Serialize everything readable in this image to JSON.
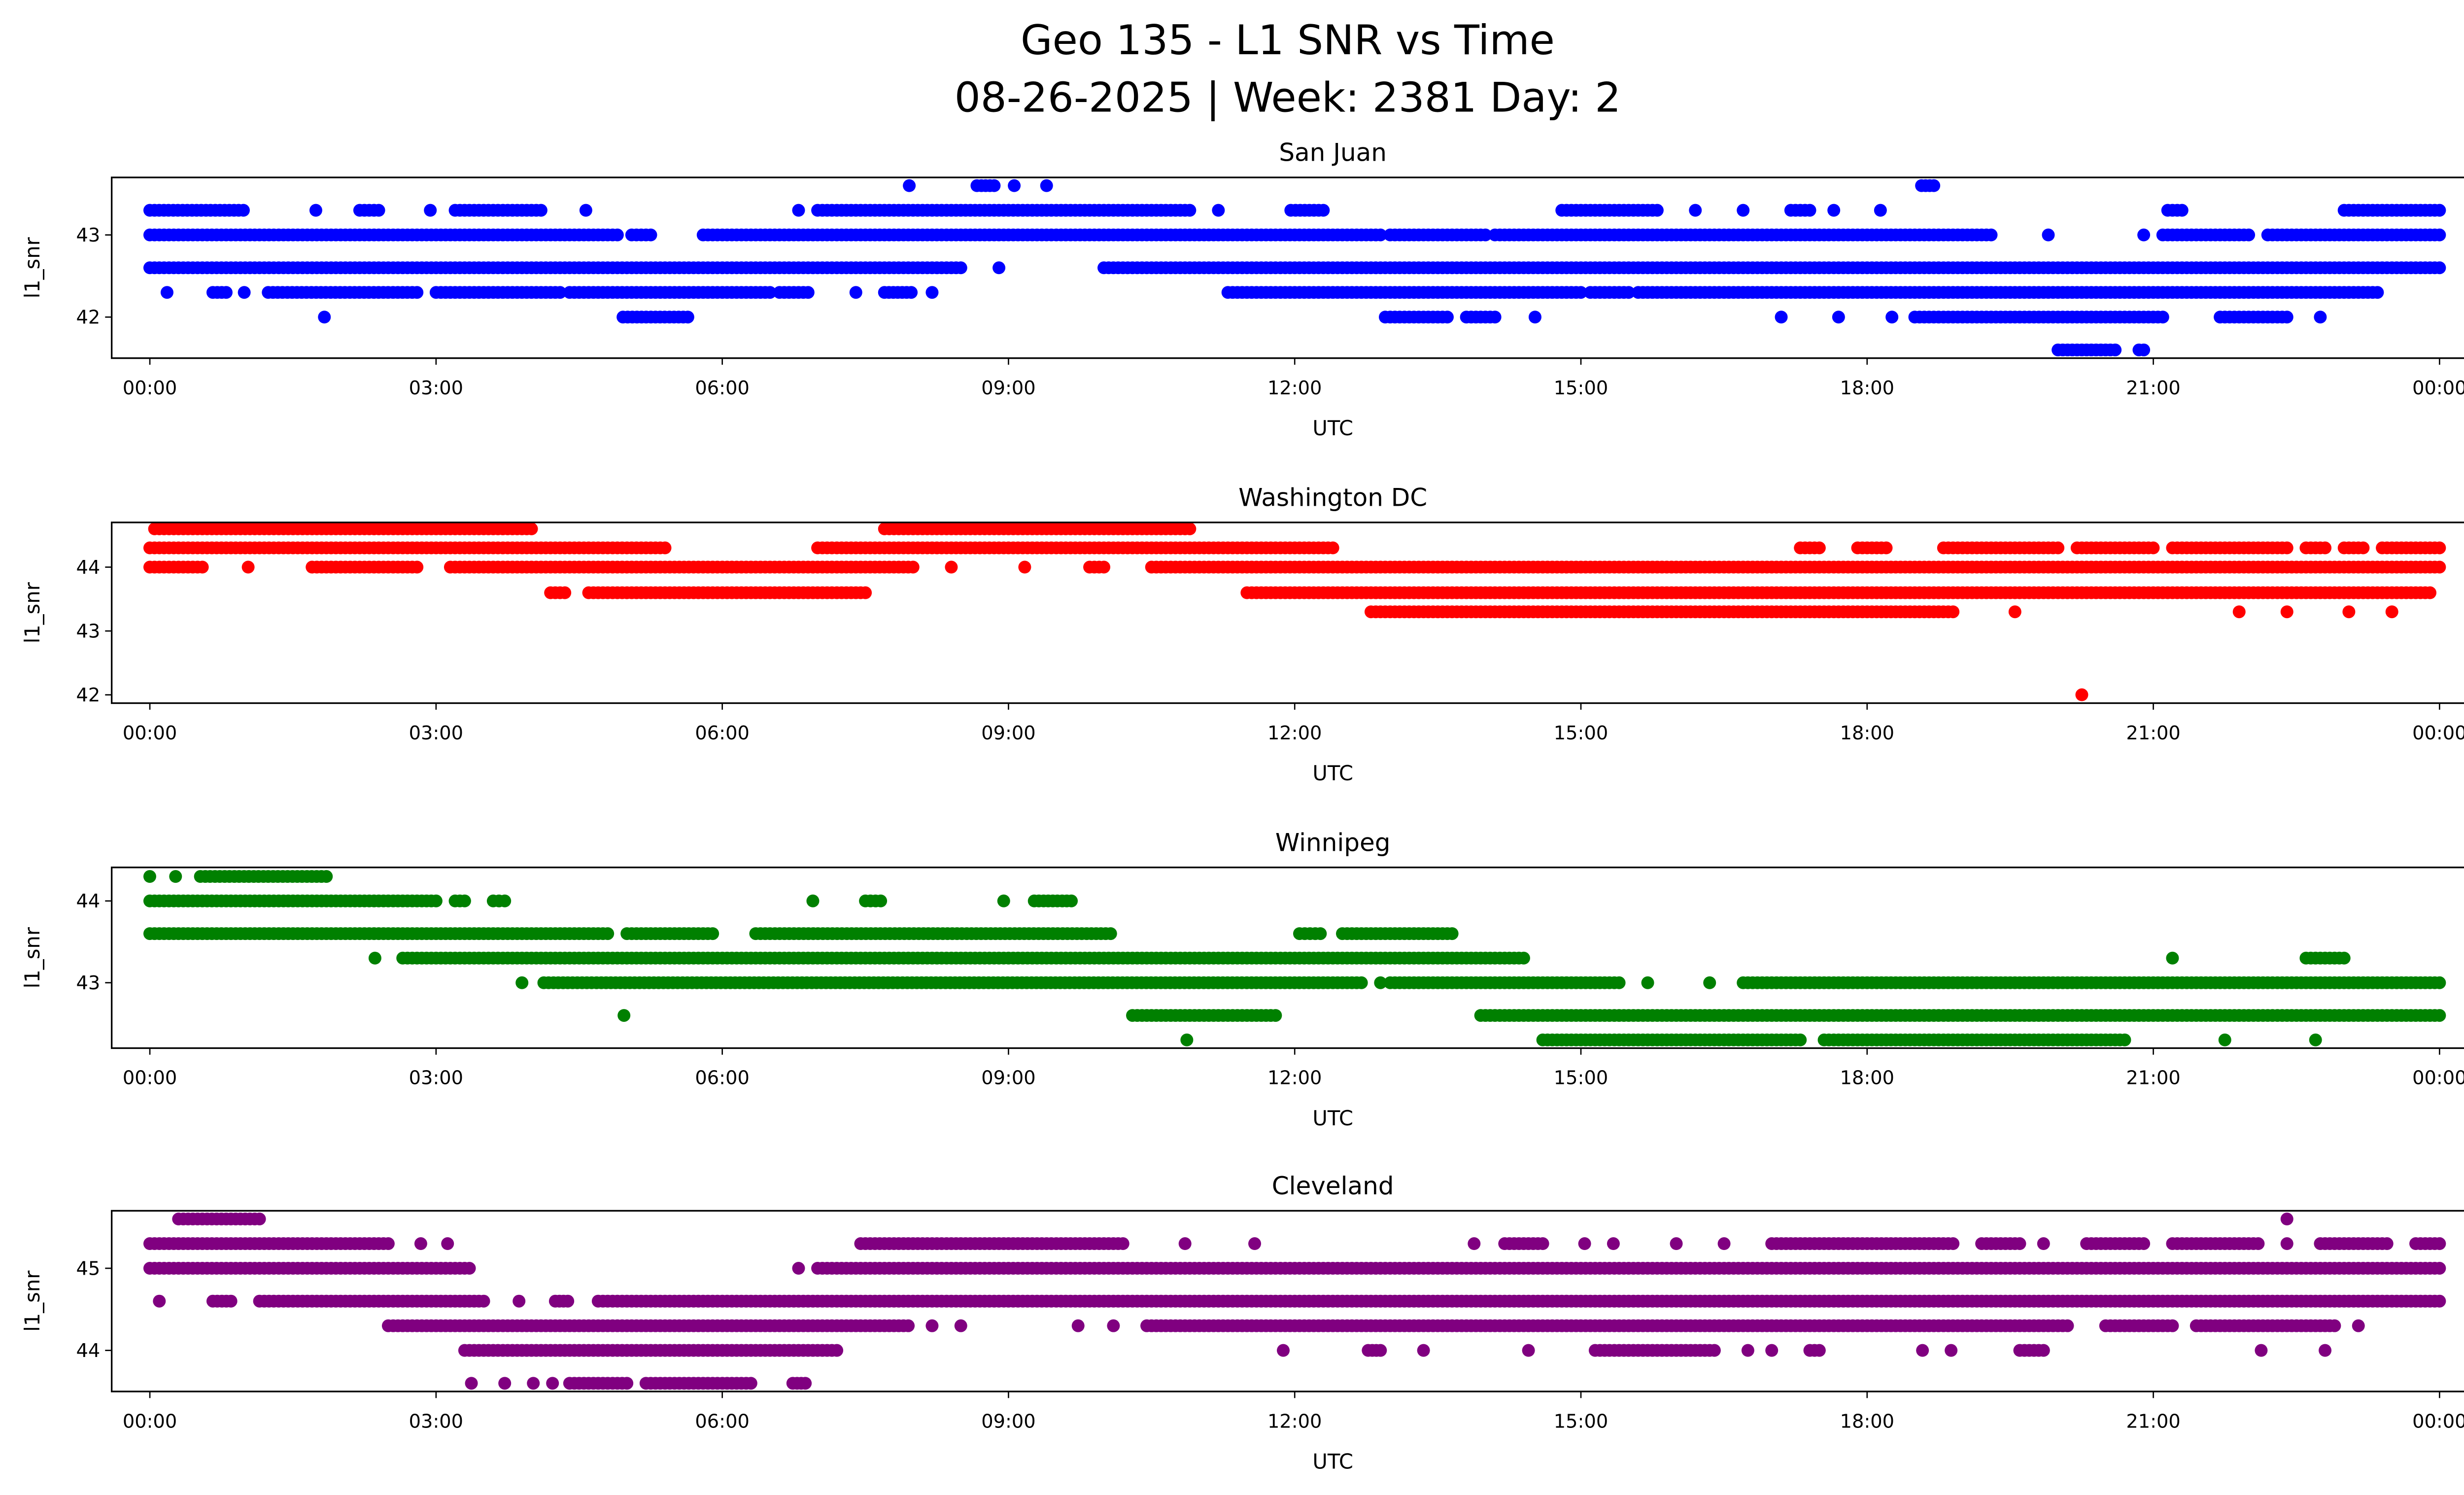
{
  "chart_data": {
    "type": "scatter",
    "title": "Geo 135 - L1 SNR vs Time",
    "subtitle": "08-26-2025 | Week: 2381 Day: 2",
    "xlabel": "UTC",
    "ylabel": "l1_snr",
    "xticks": [
      "00:00",
      "03:00",
      "06:00",
      "09:00",
      "12:00",
      "15:00",
      "18:00",
      "21:00",
      "00:00"
    ],
    "xlim_hours": [
      -0.4,
      25.2
    ],
    "run_format": "[snr_value, start_hour_utc, end_hour_utc]",
    "panels": [
      {
        "title": "San Juan",
        "color": "#0000ff",
        "ylim": [
          41.5,
          43.7
        ],
        "yticks": [
          42,
          43
        ],
        "runs": [
          [
            43.6,
            7.96,
            7.96
          ],
          [
            43.6,
            8.67,
            8.85
          ],
          [
            43.6,
            9.06,
            9.06
          ],
          [
            43.6,
            9.4,
            9.4
          ],
          [
            43.6,
            18.57,
            18.7
          ],
          [
            43.3,
            0,
            0.98
          ],
          [
            43.3,
            1.74,
            1.74
          ],
          [
            43.3,
            2.2,
            2.4
          ],
          [
            43.3,
            2.94,
            2.94
          ],
          [
            43.3,
            3.2,
            4.1
          ],
          [
            43.3,
            4.57,
            4.57
          ],
          [
            43.3,
            6.8,
            6.8
          ],
          [
            43.3,
            7.0,
            10.9
          ],
          [
            43.3,
            11.2,
            11.2
          ],
          [
            43.3,
            11.96,
            12.3
          ],
          [
            43.3,
            14.8,
            15.8
          ],
          [
            43.3,
            16.2,
            16.2
          ],
          [
            43.3,
            16.7,
            16.7
          ],
          [
            43.3,
            17.2,
            17.4
          ],
          [
            43.3,
            17.65,
            17.65
          ],
          [
            43.3,
            18.14,
            18.14
          ],
          [
            43.3,
            21.15,
            21.3
          ],
          [
            43.3,
            23.0,
            24
          ],
          [
            43.0,
            0,
            4.9
          ],
          [
            43.0,
            5.05,
            5.25
          ],
          [
            43.0,
            5.8,
            12.9
          ],
          [
            43.0,
            13.0,
            14.0
          ],
          [
            43.0,
            14.1,
            19.3
          ],
          [
            43.0,
            19.9,
            19.9
          ],
          [
            43.0,
            20.9,
            20.9
          ],
          [
            43.0,
            21.1,
            22.0
          ],
          [
            43.0,
            22.2,
            24
          ],
          [
            42.6,
            0,
            8.5
          ],
          [
            42.6,
            8.9,
            8.9
          ],
          [
            42.6,
            10.0,
            24
          ],
          [
            42.3,
            0.18,
            0.18
          ],
          [
            42.3,
            0.66,
            0.8
          ],
          [
            42.3,
            0.99,
            0.99
          ],
          [
            42.3,
            1.24,
            2.8
          ],
          [
            42.3,
            3.0,
            4.3
          ],
          [
            42.3,
            4.4,
            6.5
          ],
          [
            42.3,
            6.6,
            6.9
          ],
          [
            42.3,
            7.4,
            7.4
          ],
          [
            42.3,
            7.7,
            7.98
          ],
          [
            42.3,
            8.2,
            8.2
          ],
          [
            42.3,
            11.3,
            15.0
          ],
          [
            42.3,
            15.1,
            15.5
          ],
          [
            42.3,
            15.6,
            23.35
          ],
          [
            42.0,
            1.83,
            1.83
          ],
          [
            42.0,
            4.96,
            5.64
          ],
          [
            42.0,
            12.95,
            13.6
          ],
          [
            42.0,
            13.8,
            14.1
          ],
          [
            42.0,
            14.52,
            14.52
          ],
          [
            42.0,
            17.1,
            17.1
          ],
          [
            42.0,
            17.7,
            17.7
          ],
          [
            42.0,
            18.26,
            18.26
          ],
          [
            42.0,
            18.5,
            21.1
          ],
          [
            42.0,
            21.7,
            22.4
          ],
          [
            42.0,
            22.75,
            22.75
          ],
          [
            41.6,
            20.0,
            20.6
          ],
          [
            41.6,
            20.85,
            20.9
          ]
        ]
      },
      {
        "title": "Washington DC",
        "color": "#ff0000",
        "ylim": [
          41.87,
          44.7
        ],
        "yticks": [
          42,
          43,
          44
        ],
        "runs": [
          [
            44.6,
            0.05,
            4.0
          ],
          [
            44.6,
            7.7,
            10.9
          ],
          [
            44.3,
            0,
            5.4
          ],
          [
            44.3,
            7.0,
            12.4
          ],
          [
            44.3,
            17.3,
            17.5
          ],
          [
            44.3,
            17.9,
            18.2
          ],
          [
            44.3,
            18.8,
            20.0
          ],
          [
            44.3,
            20.2,
            21.0
          ],
          [
            44.3,
            21.2,
            22.4
          ],
          [
            44.3,
            22.6,
            22.8
          ],
          [
            44.3,
            23.0,
            23.2
          ],
          [
            44.3,
            23.4,
            24
          ],
          [
            44.0,
            0,
            0.55
          ],
          [
            44.0,
            1.03,
            1.03
          ],
          [
            44.0,
            1.7,
            2.8
          ],
          [
            44.0,
            3.15,
            8.0
          ],
          [
            44.0,
            8.4,
            8.4
          ],
          [
            44.0,
            9.17,
            9.17
          ],
          [
            44.0,
            9.85,
            10.0
          ],
          [
            44.0,
            10.5,
            24
          ],
          [
            43.6,
            4.2,
            4.35
          ],
          [
            43.6,
            4.6,
            7.5
          ],
          [
            43.6,
            11.5,
            23.9
          ],
          [
            43.3,
            12.8,
            18.9
          ],
          [
            43.3,
            19.55,
            19.55
          ],
          [
            43.3,
            21.9,
            21.9
          ],
          [
            43.3,
            22.4,
            22.4
          ],
          [
            43.3,
            23.05,
            23.05
          ],
          [
            43.3,
            23.5,
            23.5
          ],
          [
            42.0,
            20.25,
            20.25
          ]
        ]
      },
      {
        "title": "Winnipeg",
        "color": "#008000",
        "ylim": [
          42.2,
          44.41
        ],
        "yticks": [
          43,
          44
        ],
        "runs": [
          [
            44.3,
            0,
            0
          ],
          [
            44.3,
            0.27,
            0.27
          ],
          [
            44.3,
            0.53,
            1.85
          ],
          [
            44.0,
            0,
            3.0
          ],
          [
            44.0,
            3.2,
            3.3
          ],
          [
            44.0,
            3.6,
            3.72
          ],
          [
            44.0,
            6.95,
            6.95
          ],
          [
            44.0,
            7.5,
            7.66
          ],
          [
            44.0,
            8.95,
            8.95
          ],
          [
            44.0,
            9.27,
            9.66
          ],
          [
            43.6,
            0,
            4.8
          ],
          [
            43.6,
            5.0,
            5.9
          ],
          [
            43.6,
            6.35,
            10.07
          ],
          [
            43.6,
            12.05,
            12.27
          ],
          [
            43.6,
            12.5,
            13.65
          ],
          [
            43.3,
            2.36,
            2.36
          ],
          [
            43.3,
            2.65,
            14.4
          ],
          [
            43.3,
            21.2,
            21.2
          ],
          [
            43.3,
            22.6,
            23.0
          ],
          [
            43.0,
            3.9,
            3.9
          ],
          [
            43.0,
            4.13,
            12.7
          ],
          [
            43.0,
            12.9,
            12.9
          ],
          [
            43.0,
            13.0,
            15.4
          ],
          [
            43.0,
            15.7,
            15.7
          ],
          [
            43.0,
            16.35,
            16.35
          ],
          [
            43.0,
            16.7,
            24
          ],
          [
            42.6,
            4.97,
            4.97
          ],
          [
            42.6,
            10.3,
            11.8
          ],
          [
            42.6,
            13.95,
            24
          ],
          [
            42.3,
            10.87,
            10.87
          ],
          [
            42.3,
            14.6,
            17.3
          ],
          [
            42.3,
            17.55,
            20.7
          ],
          [
            42.3,
            21.75,
            21.75
          ],
          [
            42.3,
            22.7,
            22.7
          ]
        ]
      },
      {
        "title": "Cleveland",
        "color": "#800080",
        "ylim": [
          43.5,
          45.7
        ],
        "yticks": [
          44,
          45
        ],
        "runs": [
          [
            45.6,
            0.3,
            1.15
          ],
          [
            45.6,
            22.4,
            22.4
          ],
          [
            45.3,
            0,
            2.5
          ],
          [
            45.3,
            2.84,
            2.84
          ],
          [
            45.3,
            3.12,
            3.12
          ],
          [
            45.3,
            7.45,
            10.2
          ],
          [
            45.3,
            10.85,
            10.85
          ],
          [
            45.3,
            11.58,
            11.58
          ],
          [
            45.3,
            13.88,
            13.88
          ],
          [
            45.3,
            14.2,
            14.6
          ],
          [
            45.3,
            15.04,
            15.04
          ],
          [
            45.3,
            15.34,
            15.34
          ],
          [
            45.3,
            16.0,
            16.0
          ],
          [
            45.3,
            16.5,
            16.5
          ],
          [
            45.3,
            17.0,
            18.9
          ],
          [
            45.3,
            19.2,
            19.6
          ],
          [
            45.3,
            19.85,
            19.85
          ],
          [
            45.3,
            20.3,
            20.9
          ],
          [
            45.3,
            21.2,
            22.1
          ],
          [
            45.3,
            22.4,
            22.4
          ],
          [
            45.3,
            22.75,
            23.45
          ],
          [
            45.3,
            23.75,
            24
          ],
          [
            45.0,
            0,
            3.35
          ],
          [
            45.0,
            6.8,
            6.8
          ],
          [
            45.0,
            7.0,
            24
          ],
          [
            44.6,
            0.1,
            0.1
          ],
          [
            44.6,
            0.66,
            0.85
          ],
          [
            44.6,
            1.15,
            3.5
          ],
          [
            44.6,
            3.87,
            3.87
          ],
          [
            44.6,
            4.25,
            4.38
          ],
          [
            44.6,
            4.7,
            24
          ],
          [
            44.3,
            2.5,
            7.95
          ],
          [
            44.3,
            8.2,
            8.2
          ],
          [
            44.3,
            8.5,
            8.5
          ],
          [
            44.3,
            9.73,
            9.73
          ],
          [
            44.3,
            10.1,
            10.1
          ],
          [
            44.3,
            10.45,
            20.1
          ],
          [
            44.3,
            20.5,
            21.2
          ],
          [
            44.3,
            21.45,
            22.9
          ],
          [
            44.3,
            23.15,
            23.15
          ],
          [
            44.0,
            3.3,
            7.2
          ],
          [
            44.0,
            11.88,
            11.88
          ],
          [
            44.0,
            12.77,
            12.9
          ],
          [
            44.0,
            13.35,
            13.35
          ],
          [
            44.0,
            14.45,
            14.45
          ],
          [
            44.0,
            15.15,
            16.4
          ],
          [
            44.0,
            16.75,
            16.75
          ],
          [
            44.0,
            17.0,
            17.0
          ],
          [
            44.0,
            17.4,
            17.5
          ],
          [
            44.0,
            18.58,
            18.58
          ],
          [
            44.0,
            18.88,
            18.88
          ],
          [
            44.0,
            19.6,
            19.85
          ],
          [
            44.0,
            22.13,
            22.13
          ],
          [
            44.0,
            22.8,
            22.8
          ],
          [
            43.6,
            3.37,
            3.37
          ],
          [
            43.6,
            3.72,
            3.72
          ],
          [
            43.6,
            4.02,
            4.02
          ],
          [
            43.6,
            4.22,
            4.22
          ],
          [
            43.6,
            4.4,
            5.0
          ],
          [
            43.6,
            5.2,
            6.3
          ],
          [
            43.6,
            6.74,
            6.87
          ]
        ]
      }
    ]
  }
}
